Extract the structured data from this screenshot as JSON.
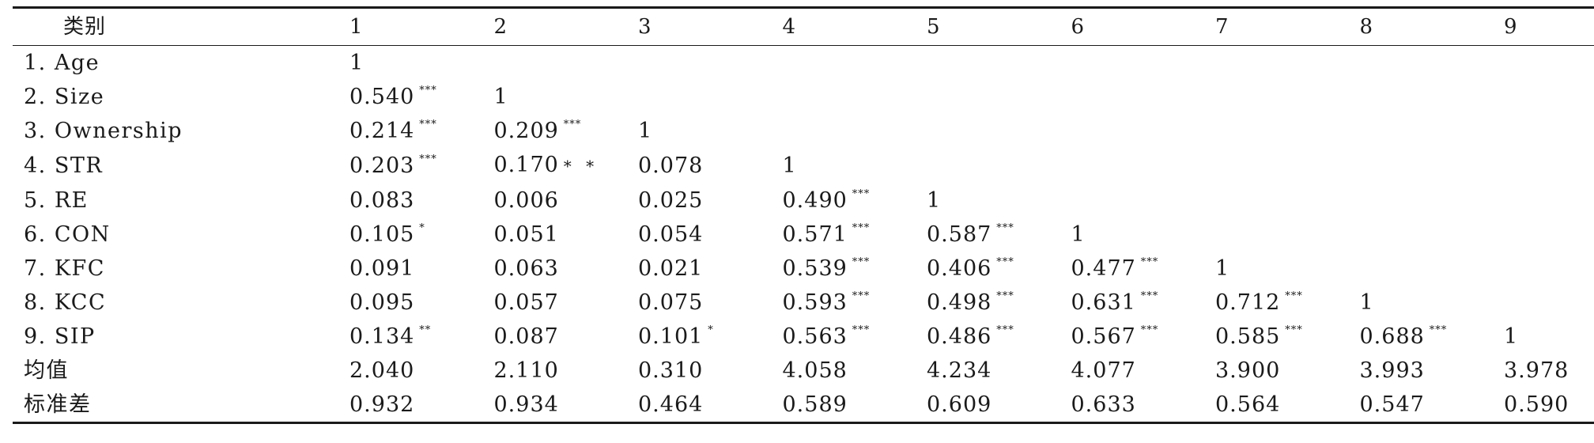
{
  "table": {
    "header": [
      "类别",
      "1",
      "2",
      "3",
      "4",
      "5",
      "6",
      "7",
      "8",
      "9"
    ],
    "rows": [
      {
        "label": "1. Age",
        "cells": [
          {
            "v": "1",
            "s": ""
          }
        ]
      },
      {
        "label": "2. Size",
        "cells": [
          {
            "v": "0.540",
            "s": "***"
          },
          {
            "v": "1",
            "s": ""
          }
        ]
      },
      {
        "label": "3. Ownership",
        "cells": [
          {
            "v": "0.214",
            "s": "***"
          },
          {
            "v": "0.209",
            "s": "***"
          },
          {
            "v": "1",
            "s": ""
          }
        ]
      },
      {
        "label": "4. STR",
        "cells": [
          {
            "v": "0.203",
            "s": "***"
          },
          {
            "v": "0.170",
            "s": "",
            "inline": "* *"
          },
          {
            "v": "0.078",
            "s": ""
          },
          {
            "v": "1",
            "s": ""
          }
        ]
      },
      {
        "label": "5. RE",
        "cells": [
          {
            "v": "0.083",
            "s": ""
          },
          {
            "v": "0.006",
            "s": ""
          },
          {
            "v": "0.025",
            "s": ""
          },
          {
            "v": "0.490",
            "s": "***"
          },
          {
            "v": "1",
            "s": ""
          }
        ]
      },
      {
        "label": "6. CON",
        "cells": [
          {
            "v": "0.105",
            "s": "*"
          },
          {
            "v": "0.051",
            "s": ""
          },
          {
            "v": "0.054",
            "s": ""
          },
          {
            "v": "0.571",
            "s": "***"
          },
          {
            "v": "0.587",
            "s": "***"
          },
          {
            "v": "1",
            "s": ""
          }
        ]
      },
      {
        "label": "7. KFC",
        "cells": [
          {
            "v": "0.091",
            "s": ""
          },
          {
            "v": "0.063",
            "s": ""
          },
          {
            "v": "0.021",
            "s": ""
          },
          {
            "v": "0.539",
            "s": "***"
          },
          {
            "v": "0.406",
            "s": "***"
          },
          {
            "v": "0.477",
            "s": "***"
          },
          {
            "v": "1",
            "s": ""
          }
        ]
      },
      {
        "label": "8. KCC",
        "cells": [
          {
            "v": "0.095",
            "s": ""
          },
          {
            "v": "0.057",
            "s": ""
          },
          {
            "v": "0.075",
            "s": ""
          },
          {
            "v": "0.593",
            "s": "***"
          },
          {
            "v": "0.498",
            "s": "***"
          },
          {
            "v": "0.631",
            "s": "***"
          },
          {
            "v": "0.712",
            "s": "***"
          },
          {
            "v": "1",
            "s": ""
          }
        ]
      },
      {
        "label": "9. SIP",
        "cells": [
          {
            "v": "0.134",
            "s": "**"
          },
          {
            "v": "0.087",
            "s": ""
          },
          {
            "v": "0.101",
            "s": "*"
          },
          {
            "v": "0.563",
            "s": "***"
          },
          {
            "v": "0.486",
            "s": "***"
          },
          {
            "v": "0.567",
            "s": "***"
          },
          {
            "v": "0.585",
            "s": "***"
          },
          {
            "v": "0.688",
            "s": "***"
          },
          {
            "v": "1",
            "s": ""
          }
        ]
      },
      {
        "label": "均值",
        "cells": [
          {
            "v": "2.040",
            "s": ""
          },
          {
            "v": "2.110",
            "s": ""
          },
          {
            "v": "0.310",
            "s": ""
          },
          {
            "v": "4.058",
            "s": ""
          },
          {
            "v": "4.234",
            "s": ""
          },
          {
            "v": "4.077",
            "s": ""
          },
          {
            "v": "3.900",
            "s": ""
          },
          {
            "v": "3.993",
            "s": ""
          },
          {
            "v": "3.978",
            "s": ""
          }
        ]
      },
      {
        "label": "标准差",
        "cells": [
          {
            "v": "0.932",
            "s": ""
          },
          {
            "v": "0.934",
            "s": ""
          },
          {
            "v": "0.464",
            "s": ""
          },
          {
            "v": "0.589",
            "s": ""
          },
          {
            "v": "0.609",
            "s": ""
          },
          {
            "v": "0.633",
            "s": ""
          },
          {
            "v": "0.564",
            "s": ""
          },
          {
            "v": "0.547",
            "s": ""
          },
          {
            "v": "0.590",
            "s": ""
          }
        ]
      }
    ]
  }
}
